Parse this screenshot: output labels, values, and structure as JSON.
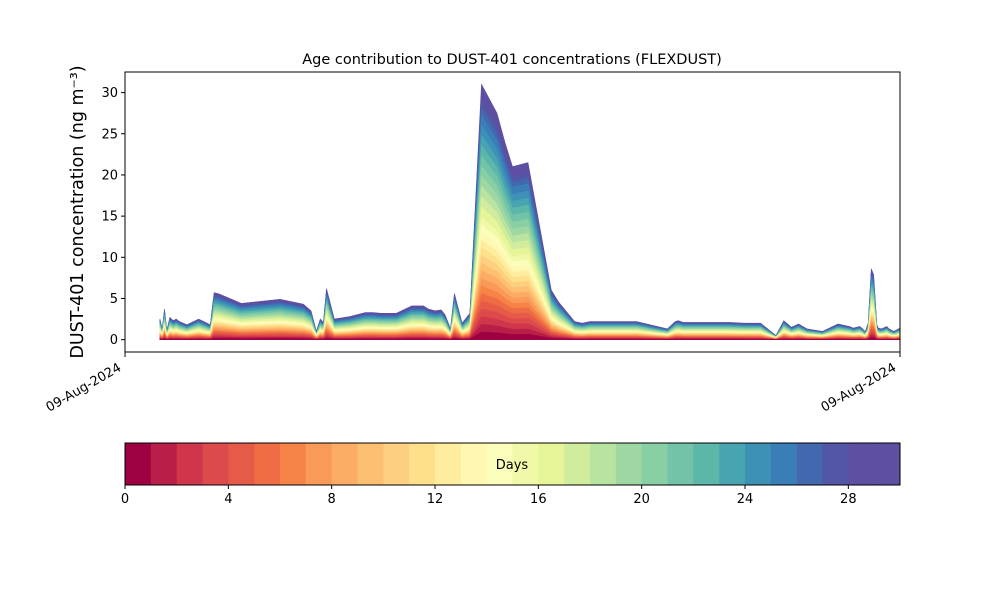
{
  "chart_data": {
    "type": "area",
    "title": "Age contribution to DUST-401 concentrations (FLEXDUST)",
    "ylabel": "DUST-401 concentration (ng m⁻³)",
    "xlabel": "",
    "x_tick_labels": [
      "09-Aug-2024",
      "09-Aug-2024"
    ],
    "ylim": [
      -1.5,
      32.5
    ],
    "y_ticks": [
      0,
      5,
      10,
      15,
      20,
      25,
      30
    ],
    "grid": false,
    "legend": "none",
    "x_domain": [
      0,
      100
    ],
    "x": [
      4.5,
      4.8,
      5.1,
      5.4,
      5.8,
      6.2,
      6.6,
      7.0,
      8.0,
      9.5,
      11.0,
      11.5,
      12.0,
      13.0,
      15.0,
      17.0,
      20.0,
      23.0,
      24.0,
      24.7,
      25.2,
      25.6,
      26.0,
      27.0,
      29.0,
      31.0,
      32.0,
      33.0,
      35.0,
      37.0,
      38.5,
      39.2,
      40.0,
      40.8,
      41.3,
      42.0,
      42.5,
      43.5,
      44.5,
      46.0,
      48.0,
      49.0,
      50.0,
      52.0,
      55.0,
      56.0,
      58.0,
      59.0,
      60.0,
      66.0,
      70.0,
      71.0,
      71.4,
      72.0,
      72.5,
      73.0,
      73.5,
      74.0,
      75.0,
      76.0,
      78.0,
      80.0,
      82.0,
      84.0,
      85.0,
      86.0,
      86.9,
      88.0,
      90.0,
      92.0,
      93.5,
      94.0,
      94.8,
      95.2,
      95.4,
      95.6,
      95.9,
      96.3,
      96.6,
      97.0,
      97.2,
      97.6,
      98.3,
      98.6,
      99.2,
      100.0
    ],
    "totals": [
      2.5,
      1.3,
      3.7,
      1.1,
      2.7,
      2.3,
      2.5,
      2.2,
      1.8,
      2.5,
      1.8,
      5.7,
      5.6,
      5.2,
      4.4,
      4.6,
      4.9,
      4.3,
      3.5,
      1.0,
      2.5,
      2.1,
      6.2,
      2.5,
      2.8,
      3.3,
      3.3,
      3.2,
      3.2,
      4.1,
      4.1,
      3.7,
      3.5,
      3.6,
      3.0,
      1.3,
      5.6,
      2.0,
      3.2,
      31.0,
      27.5,
      24.0,
      21.0,
      21.5,
      6.0,
      4.5,
      2.2,
      2.0,
      2.2,
      2.2,
      1.3,
      2.2,
      2.3,
      2.1,
      2.1,
      2.1,
      2.1,
      2.1,
      2.1,
      2.1,
      2.1,
      2.0,
      2.0,
      0.5,
      2.3,
      1.5,
      1.9,
      1.3,
      1.0,
      1.9,
      1.6,
      1.4,
      1.6,
      1.3,
      1.0,
      1.2,
      2.0,
      8.6,
      7.9,
      1.8,
      1.4,
      1.3,
      1.6,
      1.3,
      1.0,
      1.4
    ],
    "series_count": 30,
    "cumulative_shares": [
      0.03,
      0.06,
      0.09,
      0.12,
      0.15,
      0.18,
      0.21,
      0.24,
      0.27,
      0.3,
      0.33,
      0.36,
      0.39,
      0.42,
      0.45,
      0.48,
      0.52,
      0.56,
      0.6,
      0.64,
      0.68,
      0.72,
      0.76,
      0.8,
      0.84,
      0.88,
      0.91,
      0.94,
      0.97,
      1.0
    ],
    "colorbar": {
      "label": "Days",
      "range": [
        0,
        30
      ],
      "ticks": [
        0,
        4,
        8,
        12,
        16,
        20,
        24,
        28
      ],
      "colors": [
        "#9e0142",
        "#b91e48",
        "#d0364b",
        "#dd4a4c",
        "#e65a48",
        "#ef6c45",
        "#f68447",
        "#f99a58",
        "#fcac64",
        "#fdbf70",
        "#fdd081",
        "#fee08b",
        "#feec9f",
        "#fff8b2",
        "#fbfdba",
        "#f1f9a9",
        "#e6f598",
        "#d1ec9c",
        "#b9e3a0",
        "#9fd7a3",
        "#88cfa4",
        "#72c3a7",
        "#5db7a9",
        "#49a4b1",
        "#3e91b6",
        "#3a7eb8",
        "#4269b0",
        "#5356a6",
        "#5e4fa2",
        "#5e4fa2"
      ]
    }
  }
}
